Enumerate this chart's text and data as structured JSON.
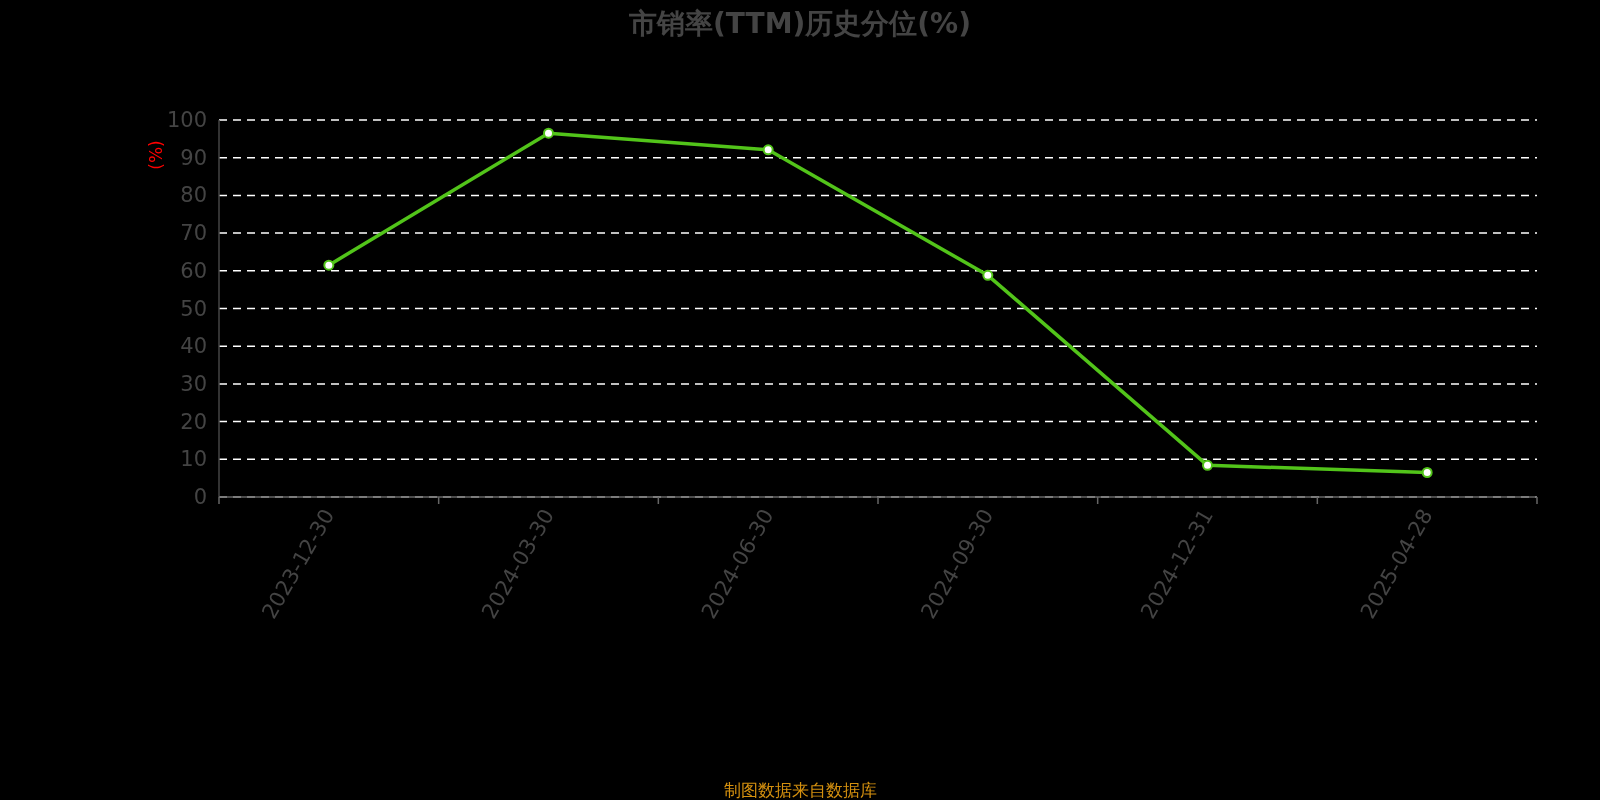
{
  "chart_data": {
    "type": "line",
    "title": "市销率(TTM)历史分位(%)",
    "ylabel": "(%)",
    "categories": [
      "2023-12-30",
      "2024-03-30",
      "2024-06-30",
      "2024-09-30",
      "2024-12-31",
      "2025-04-28"
    ],
    "series": [
      {
        "color": "#52c41a",
        "values": [
          61.5,
          96.5,
          92.1,
          58.8,
          8.4,
          6.5
        ]
      }
    ],
    "ylim": [
      0,
      100
    ],
    "yticks": [
      0,
      10,
      20,
      30,
      40,
      50,
      60,
      70,
      80,
      90,
      100
    ],
    "grid": "y",
    "marker": "circle",
    "line_style": "solid",
    "annotations": [
      "制图数据来自数据库"
    ]
  }
}
